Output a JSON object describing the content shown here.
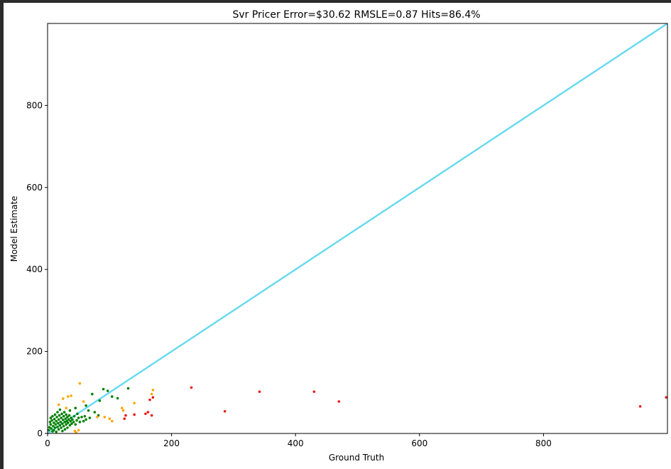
{
  "chart_data": {
    "type": "scatter",
    "title": "Svr Pricer Error=$30.62 RMSLE=0.87 Hits=86.4%",
    "xlabel": "Ground Truth",
    "ylabel": "Model Estimate",
    "xlim": [
      0,
      1000
    ],
    "ylim": [
      0,
      1000
    ],
    "xticks": [
      "0",
      "200",
      "400",
      "600",
      "800"
    ],
    "yticks": [
      "0",
      "200",
      "400",
      "600",
      "800"
    ],
    "grid": false,
    "reference_line": {
      "x": [
        0,
        1000
      ],
      "y": [
        0,
        1000
      ],
      "color": "#66d9f0"
    },
    "colors": {
      "green": "#008000",
      "orange": "#ffa500",
      "red": "#e81919"
    },
    "points": [
      {
        "x": 2,
        "y": 8,
        "c": "green"
      },
      {
        "x": 3,
        "y": 15,
        "c": "green"
      },
      {
        "x": 4,
        "y": 28,
        "c": "green"
      },
      {
        "x": 5,
        "y": 38,
        "c": "green"
      },
      {
        "x": 5,
        "y": 22,
        "c": "green"
      },
      {
        "x": 6,
        "y": 12,
        "c": "green"
      },
      {
        "x": 7,
        "y": 32,
        "c": "green"
      },
      {
        "x": 8,
        "y": 5,
        "c": "green"
      },
      {
        "x": 8,
        "y": 42,
        "c": "green"
      },
      {
        "x": 9,
        "y": 18,
        "c": "green"
      },
      {
        "x": 10,
        "y": 26,
        "c": "green"
      },
      {
        "x": 10,
        "y": 8,
        "c": "green"
      },
      {
        "x": 11,
        "y": 35,
        "c": "green"
      },
      {
        "x": 12,
        "y": 14,
        "c": "green"
      },
      {
        "x": 12,
        "y": 46,
        "c": "green"
      },
      {
        "x": 13,
        "y": 22,
        "c": "green"
      },
      {
        "x": 14,
        "y": 30,
        "c": "green"
      },
      {
        "x": 14,
        "y": 4,
        "c": "green"
      },
      {
        "x": 15,
        "y": 40,
        "c": "green"
      },
      {
        "x": 16,
        "y": 16,
        "c": "green"
      },
      {
        "x": 16,
        "y": 52,
        "c": "green"
      },
      {
        "x": 17,
        "y": 25,
        "c": "green"
      },
      {
        "x": 18,
        "y": 34,
        "c": "green"
      },
      {
        "x": 18,
        "y": 10,
        "c": "green"
      },
      {
        "x": 19,
        "y": 44,
        "c": "green"
      },
      {
        "x": 20,
        "y": 20,
        "c": "green"
      },
      {
        "x": 20,
        "y": 58,
        "c": "green"
      },
      {
        "x": 21,
        "y": 28,
        "c": "green"
      },
      {
        "x": 22,
        "y": 38,
        "c": "green"
      },
      {
        "x": 22,
        "y": 14,
        "c": "green"
      },
      {
        "x": 23,
        "y": 48,
        "c": "green"
      },
      {
        "x": 24,
        "y": 24,
        "c": "green"
      },
      {
        "x": 24,
        "y": 6,
        "c": "green"
      },
      {
        "x": 25,
        "y": 33,
        "c": "green"
      },
      {
        "x": 26,
        "y": 42,
        "c": "green"
      },
      {
        "x": 26,
        "y": 18,
        "c": "green"
      },
      {
        "x": 27,
        "y": 52,
        "c": "green"
      },
      {
        "x": 28,
        "y": 28,
        "c": "green"
      },
      {
        "x": 28,
        "y": 10,
        "c": "green"
      },
      {
        "x": 29,
        "y": 36,
        "c": "green"
      },
      {
        "x": 30,
        "y": 46,
        "c": "green"
      },
      {
        "x": 30,
        "y": 22,
        "c": "green"
      },
      {
        "x": 31,
        "y": 30,
        "c": "green"
      },
      {
        "x": 32,
        "y": 40,
        "c": "green"
      },
      {
        "x": 32,
        "y": 14,
        "c": "green"
      },
      {
        "x": 33,
        "y": 26,
        "c": "green"
      },
      {
        "x": 34,
        "y": 34,
        "c": "green"
      },
      {
        "x": 35,
        "y": 44,
        "c": "green"
      },
      {
        "x": 36,
        "y": 20,
        "c": "green"
      },
      {
        "x": 37,
        "y": 30,
        "c": "green"
      },
      {
        "x": 38,
        "y": 38,
        "c": "green"
      },
      {
        "x": 39,
        "y": 24,
        "c": "green"
      },
      {
        "x": 40,
        "y": 34,
        "c": "green"
      },
      {
        "x": 42,
        "y": 28,
        "c": "green"
      },
      {
        "x": 43,
        "y": 42,
        "c": "green"
      },
      {
        "x": 45,
        "y": 22,
        "c": "green"
      },
      {
        "x": 47,
        "y": 32,
        "c": "green"
      },
      {
        "x": 48,
        "y": 48,
        "c": "green"
      },
      {
        "x": 50,
        "y": 38,
        "c": "green"
      },
      {
        "x": 52,
        "y": 28,
        "c": "green"
      },
      {
        "x": 55,
        "y": 40,
        "c": "green"
      },
      {
        "x": 58,
        "y": 30,
        "c": "green"
      },
      {
        "x": 60,
        "y": 42,
        "c": "green"
      },
      {
        "x": 62,
        "y": 34,
        "c": "green"
      },
      {
        "x": 66,
        "y": 56,
        "c": "green"
      },
      {
        "x": 68,
        "y": 38,
        "c": "green"
      },
      {
        "x": 72,
        "y": 96,
        "c": "green"
      },
      {
        "x": 76,
        "y": 52,
        "c": "green"
      },
      {
        "x": 82,
        "y": 44,
        "c": "green"
      },
      {
        "x": 84,
        "y": 80,
        "c": "green"
      },
      {
        "x": 90,
        "y": 108,
        "c": "green"
      },
      {
        "x": 97,
        "y": 104,
        "c": "green"
      },
      {
        "x": 104,
        "y": 90,
        "c": "green"
      },
      {
        "x": 113,
        "y": 86,
        "c": "green"
      },
      {
        "x": 130,
        "y": 110,
        "c": "green"
      },
      {
        "x": 62,
        "y": 68,
        "c": "green"
      },
      {
        "x": 45,
        "y": 62,
        "c": "green"
      },
      {
        "x": 36,
        "y": 56,
        "c": "green"
      },
      {
        "x": 18,
        "y": 70,
        "c": "orange"
      },
      {
        "x": 25,
        "y": 85,
        "c": "orange"
      },
      {
        "x": 30,
        "y": 62,
        "c": "orange"
      },
      {
        "x": 33,
        "y": 90,
        "c": "orange"
      },
      {
        "x": 38,
        "y": 92,
        "c": "orange"
      },
      {
        "x": 44,
        "y": 6,
        "c": "orange"
      },
      {
        "x": 46,
        "y": 2,
        "c": "orange"
      },
      {
        "x": 50,
        "y": 8,
        "c": "orange"
      },
      {
        "x": 52,
        "y": 122,
        "c": "orange"
      },
      {
        "x": 58,
        "y": 78,
        "c": "orange"
      },
      {
        "x": 80,
        "y": 40,
        "c": "orange"
      },
      {
        "x": 92,
        "y": 40,
        "c": "orange"
      },
      {
        "x": 100,
        "y": 36,
        "c": "orange"
      },
      {
        "x": 104,
        "y": 30,
        "c": "orange"
      },
      {
        "x": 120,
        "y": 62,
        "c": "orange"
      },
      {
        "x": 122,
        "y": 56,
        "c": "orange"
      },
      {
        "x": 140,
        "y": 74,
        "c": "orange"
      },
      {
        "x": 168,
        "y": 96,
        "c": "orange"
      },
      {
        "x": 170,
        "y": 106,
        "c": "orange"
      },
      {
        "x": 124,
        "y": 36,
        "c": "red"
      },
      {
        "x": 126,
        "y": 44,
        "c": "red"
      },
      {
        "x": 140,
        "y": 46,
        "c": "red"
      },
      {
        "x": 158,
        "y": 48,
        "c": "red"
      },
      {
        "x": 162,
        "y": 52,
        "c": "red"
      },
      {
        "x": 165,
        "y": 82,
        "c": "red"
      },
      {
        "x": 168,
        "y": 44,
        "c": "red"
      },
      {
        "x": 170,
        "y": 88,
        "c": "red"
      },
      {
        "x": 232,
        "y": 112,
        "c": "red"
      },
      {
        "x": 286,
        "y": 54,
        "c": "red"
      },
      {
        "x": 342,
        "y": 102,
        "c": "red"
      },
      {
        "x": 430,
        "y": 102,
        "c": "red"
      },
      {
        "x": 470,
        "y": 78,
        "c": "red"
      },
      {
        "x": 956,
        "y": 66,
        "c": "red"
      },
      {
        "x": 998,
        "y": 88,
        "c": "red"
      }
    ]
  }
}
